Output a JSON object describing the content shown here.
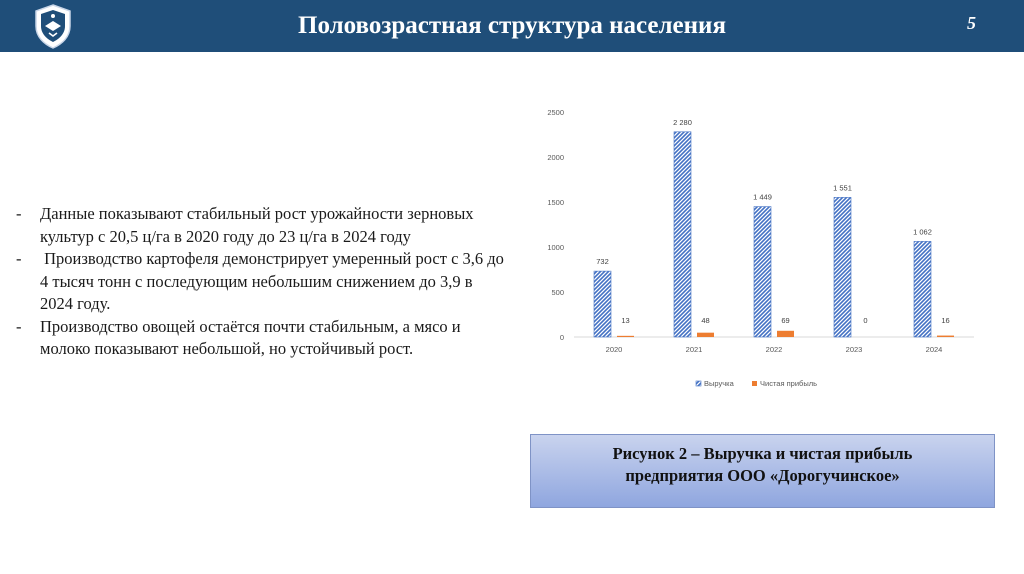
{
  "header": {
    "title": "Половозрастная структура населения",
    "page_number": "5",
    "logo_icon": "university-crest-icon",
    "background_color": "#1f4e79"
  },
  "bullets": [
    {
      "dash": "-",
      "text": "Данные показывают стабильный рост урожайности зерновых культур с 20,5 ц/га в 2020 году до 23 ц/га в 2024 году"
    },
    {
      "dash": "-",
      "text": " Производство картофеля демонстрирует умеренный рост с 3,6 до 4 тысяч тонн с последующим небольшим снижением до 3,9 в 2024 году."
    },
    {
      "dash": "-",
      "text": "Производство овощей остаётся почти стабильным, а мясо и молоко показывают небольшой, но устойчивый рост."
    }
  ],
  "caption": {
    "line1": "Рисунок 2 – Выручка и чистая прибыль",
    "line2": "предприятия ООО «Дорогучинское»"
  },
  "chart_data": {
    "type": "bar",
    "categories": [
      "2020",
      "2021",
      "2022",
      "2023",
      "2024"
    ],
    "series": [
      {
        "name": "Выручка",
        "values": [
          732,
          2280,
          1449,
          1551,
          1062
        ],
        "labels": [
          "732",
          "2 280",
          "1 449",
          "1 551",
          "1 062"
        ],
        "color": "#4472c4",
        "pattern": "hatched"
      },
      {
        "name": "Чистая прибыль",
        "values": [
          13,
          48,
          69,
          0,
          16
        ],
        "labels": [
          "13",
          "48",
          "69",
          "0",
          "16"
        ],
        "color": "#ed7d31"
      }
    ],
    "ylim": [
      0,
      2500
    ],
    "yticks": [
      "0",
      "500",
      "1000",
      "1500",
      "2000",
      "2500"
    ],
    "grid": false,
    "legend_position": "bottom"
  }
}
